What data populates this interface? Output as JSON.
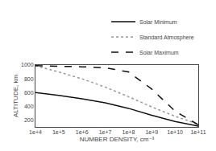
{
  "chart_data": {
    "type": "line",
    "xlabel": "NUMBER DENSITY, cm⁻³",
    "ylabel": "ALTITUDE, km",
    "x": [
      10000,
      100000,
      1000000,
      10000000,
      100000000,
      1000000000,
      10000000000,
      100000000000
    ],
    "series": [
      {
        "name": "Solar Minimum",
        "color": "#111111",
        "line_style": "solid",
        "values": [
          600,
          560,
          510,
          450,
          370,
          270,
          180,
          110
        ]
      },
      {
        "name": "Standard Atmosphere",
        "color": "#999999",
        "line_style": "dotted",
        "values": [
          990,
          900,
          800,
          680,
          540,
          390,
          255,
          140
        ]
      },
      {
        "name": "Solar Maximum",
        "color": "#111111",
        "line_style": "dashed",
        "values": [
          990,
          985,
          975,
          960,
          900,
          650,
          330,
          130
        ]
      }
    ],
    "log": "x",
    "xlim": [
      10000,
      100000000000
    ],
    "xticks": [
      {
        "value": 10000,
        "label": "1e+4"
      },
      {
        "value": 100000,
        "label": "1e+5"
      },
      {
        "value": 1000000,
        "label": "1e+6"
      },
      {
        "value": 10000000,
        "label": "1e+7"
      },
      {
        "value": 100000000,
        "label": "1e+8"
      },
      {
        "value": 1000000000,
        "label": "1e+9"
      },
      {
        "value": 10000000000,
        "label": "1e+10"
      },
      {
        "value": 100000000000,
        "label": "1e+11"
      }
    ],
    "ylim": [
      100,
      1000
    ],
    "yticks": [
      200,
      400,
      600,
      800,
      1000
    ],
    "grid": false,
    "legend": "upper right"
  }
}
